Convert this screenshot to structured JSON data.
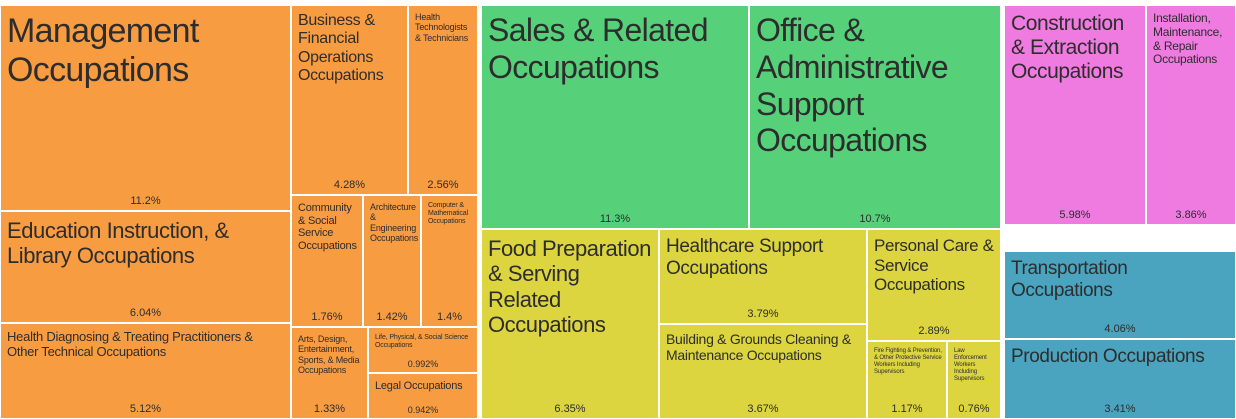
{
  "chart_data": {
    "type": "treemap",
    "categories": [
      "Management Occupations",
      "Business & Financial Operations Occupations",
      "Health Technologists & Technicians",
      "Education Instruction, & Library Occupations",
      "Health Diagnosing & Treating Practitioners & Other Technical Occupations",
      "Community & Social Service Occupations",
      "Architecture & Engineering Occupations",
      "Computer & Mathematical Occupations",
      "Arts, Design, Entertainment, Sports, & Media Occupations",
      "Life, Physical, & Social Science Occupations",
      "Legal Occupations",
      "Sales & Related Occupations",
      "Office & Administrative Support Occupations",
      "Food Preparation & Serving Related Occupations",
      "Healthcare Support Occupations",
      "Building & Grounds Cleaning & Maintenance Occupations",
      "Personal Care & Service Occupations",
      "Fire Fighting & Prevention, & Other Protective Service Workers Including Supervisors",
      "Law Enforcement Workers Including Supervisors",
      "Construction & Extraction Occupations",
      "Installation, Maintenance, & Repair Occupations",
      "Transportation Occupations",
      "Production Occupations"
    ],
    "values": [
      11.2,
      4.28,
      2.56,
      6.04,
      5.12,
      1.76,
      1.42,
      1.4,
      1.33,
      0.992,
      0.942,
      11.3,
      10.7,
      6.35,
      3.79,
      3.67,
      2.89,
      1.17,
      0.76,
      5.98,
      3.86,
      4.06,
      3.41
    ],
    "value_labels": [
      "11.2%",
      "4.28%",
      "2.56%",
      "6.04%",
      "5.12%",
      "1.76%",
      "1.42%",
      "1.4%",
      "1.33%",
      "0.992%",
      "0.942%",
      "11.3%",
      "10.7%",
      "6.35%",
      "3.79%",
      "3.67%",
      "2.89%",
      "1.17%",
      "0.76%",
      "5.98%",
      "3.86%",
      "4.06%",
      "3.41%"
    ],
    "colors": [
      "#f89c42",
      "#f89c42",
      "#f89c42",
      "#f89c42",
      "#f89c42",
      "#f89c42",
      "#f89c42",
      "#f89c42",
      "#f89c42",
      "#f89c42",
      "#f89c42",
      "#56d17a",
      "#56d17a",
      "#dcd53f",
      "#dcd53f",
      "#dcd53f",
      "#dcd53f",
      "#dcd53f",
      "#dcd53f",
      "#ef7ae0",
      "#ef7ae0",
      "#4aa3bf",
      "#4aa3bf"
    ]
  }
}
